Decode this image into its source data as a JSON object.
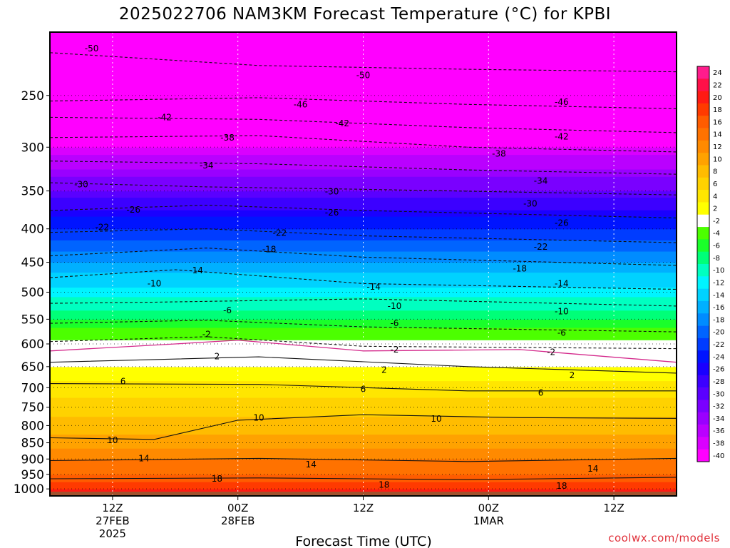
{
  "title": "2025022706 NAM3KM Forecast Temperature (°C) for KPBI",
  "credit": "coolwx.com/models",
  "chart_data": {
    "type": "heatmap",
    "title": "2025022706 NAM3KM Forecast Temperature (°C) for KPBI",
    "xlabel": "Forecast Time (UTC)",
    "ylabel": "",
    "y_axis": {
      "scale": "log-pressure",
      "inverted": true,
      "range_hpa": [
        1025,
        200
      ],
      "tick_labels": [
        "250",
        "300",
        "350",
        "400",
        "450",
        "500",
        "550",
        "600",
        "650",
        "700",
        "750",
        "800",
        "850",
        "900",
        "950",
        "1000"
      ]
    },
    "x_axis": {
      "range_forecast_hours": [
        0,
        60
      ],
      "ticks": [
        {
          "hour": 6,
          "label": "12Z",
          "sublabel": "27FEB",
          "sublabel2": "2025"
        },
        {
          "hour": 18,
          "label": "00Z",
          "sublabel": "28FEB",
          "sublabel2": ""
        },
        {
          "hour": 30,
          "label": "12Z",
          "sublabel": "",
          "sublabel2": ""
        },
        {
          "hour": 42,
          "label": "00Z",
          "sublabel": "1MAR",
          "sublabel2": ""
        },
        {
          "hour": 54,
          "label": "12Z",
          "sublabel": "",
          "sublabel2": ""
        }
      ]
    },
    "grid": true,
    "legend": "colorbar-right",
    "colorbar": {
      "levels": [
        24,
        22,
        20,
        18,
        16,
        14,
        12,
        10,
        8,
        6,
        4,
        2,
        -2,
        -4,
        -6,
        -8,
        -10,
        -12,
        -14,
        -16,
        -18,
        -20,
        -22,
        -24,
        -26,
        -28,
        -30,
        -32,
        -34,
        -36,
        -38,
        -40
      ],
      "colors": [
        "#ff1c8c",
        "#ff1048",
        "#ff1a14",
        "#ff3a00",
        "#ff5c00",
        "#ff7200",
        "#ff8a00",
        "#ffa200",
        "#ffbc00",
        "#ffd200",
        "#ffe600",
        "#ffff00",
        "#ffffff",
        "#4cff00",
        "#1aff2a",
        "#00ff78",
        "#00ffc0",
        "#00f4ff",
        "#00d2ff",
        "#00b0ff",
        "#008cff",
        "#0064ff",
        "#003cff",
        "#0014ff",
        "#1a00ff",
        "#3c00ff",
        "#5a00ff",
        "#7a00ff",
        "#9a00ff",
        "#ba00ff",
        "#da00ff",
        "#ff00ff"
      ]
    },
    "temperature_profile": [
      {
        "hpa": 1010,
        "temp_c": 22
      },
      {
        "hpa": 1000,
        "temp_c": 20
      },
      {
        "hpa": 975,
        "temp_c": 18
      },
      {
        "hpa": 950,
        "temp_c": 16
      },
      {
        "hpa": 925,
        "temp_c": 15
      },
      {
        "hpa": 900,
        "temp_c": 14
      },
      {
        "hpa": 850,
        "temp_c": 11
      },
      {
        "hpa": 800,
        "temp_c": 9
      },
      {
        "hpa": 750,
        "temp_c": 7
      },
      {
        "hpa": 700,
        "temp_c": 5
      },
      {
        "hpa": 650,
        "temp_c": 2
      },
      {
        "hpa": 600,
        "temp_c": -1
      },
      {
        "hpa": 550,
        "temp_c": -6
      },
      {
        "hpa": 500,
        "temp_c": -11
      },
      {
        "hpa": 450,
        "temp_c": -16
      },
      {
        "hpa": 400,
        "temp_c": -22
      },
      {
        "hpa": 350,
        "temp_c": -30
      },
      {
        "hpa": 300,
        "temp_c": -38
      },
      {
        "hpa": 250,
        "temp_c": -46
      },
      {
        "hpa": 200,
        "temp_c": -54
      }
    ],
    "contours": [
      {
        "value": 18,
        "style": "solid",
        "points": [
          [
            0,
            965
          ],
          [
            20,
            962
          ],
          [
            40,
            968
          ],
          [
            60,
            960
          ]
        ]
      },
      {
        "value": 14,
        "style": "solid",
        "points": [
          [
            0,
            905
          ],
          [
            20,
            898
          ],
          [
            40,
            908
          ],
          [
            60,
            898
          ]
        ]
      },
      {
        "value": 10,
        "style": "solid",
        "points": [
          [
            0,
            835
          ],
          [
            10,
            840
          ],
          [
            18,
            785
          ],
          [
            30,
            770
          ],
          [
            45,
            778
          ],
          [
            60,
            780
          ]
        ]
      },
      {
        "value": 6,
        "style": "solid",
        "points": [
          [
            0,
            690
          ],
          [
            20,
            692
          ],
          [
            40,
            708
          ],
          [
            60,
            708
          ]
        ]
      },
      {
        "value": 2,
        "style": "solid",
        "points": [
          [
            0,
            640
          ],
          [
            20,
            628
          ],
          [
            40,
            650
          ],
          [
            60,
            665
          ]
        ]
      },
      {
        "value": 2,
        "style": "dashed",
        "points": [
          [
            0,
            595
          ],
          [
            15,
            585
          ],
          [
            30,
            605
          ],
          [
            60,
            610
          ]
        ]
      },
      {
        "value": 6,
        "style": "dashed",
        "points": [
          [
            0,
            558
          ],
          [
            15,
            552
          ],
          [
            30,
            565
          ],
          [
            60,
            575
          ]
        ]
      },
      {
        "value": 10,
        "style": "dashed",
        "points": [
          [
            0,
            520
          ],
          [
            10,
            518
          ],
          [
            30,
            512
          ],
          [
            60,
            525
          ]
        ]
      },
      {
        "value": 14,
        "style": "dashed",
        "points": [
          [
            0,
            475
          ],
          [
            12,
            462
          ],
          [
            30,
            485
          ],
          [
            60,
            495
          ]
        ]
      },
      {
        "value": 18,
        "style": "dashed",
        "points": [
          [
            0,
            440
          ],
          [
            15,
            428
          ],
          [
            30,
            442
          ],
          [
            60,
            455
          ]
        ]
      },
      {
        "value": 22,
        "style": "dashed",
        "points": [
          [
            0,
            405
          ],
          [
            15,
            400
          ],
          [
            30,
            410
          ],
          [
            60,
            420
          ]
        ]
      },
      {
        "value": 26,
        "style": "dashed",
        "points": [
          [
            0,
            375
          ],
          [
            15,
            368
          ],
          [
            30,
            375
          ],
          [
            60,
            385
          ]
        ]
      },
      {
        "value": 30,
        "style": "dashed",
        "points": [
          [
            0,
            340
          ],
          [
            15,
            345
          ],
          [
            30,
            348
          ],
          [
            60,
            355
          ]
        ]
      },
      {
        "value": 34,
        "style": "dashed",
        "points": [
          [
            0,
            315
          ],
          [
            20,
            318
          ],
          [
            40,
            325
          ],
          [
            60,
            330
          ]
        ]
      },
      {
        "value": 38,
        "style": "dashed",
        "points": [
          [
            0,
            290
          ],
          [
            20,
            288
          ],
          [
            40,
            300
          ],
          [
            60,
            305
          ]
        ]
      },
      {
        "value": 42,
        "style": "dashed",
        "points": [
          [
            0,
            270
          ],
          [
            20,
            272
          ],
          [
            40,
            280
          ],
          [
            60,
            285
          ]
        ]
      },
      {
        "value": 46,
        "style": "dashed",
        "points": [
          [
            0,
            255
          ],
          [
            20,
            252
          ],
          [
            40,
            258
          ],
          [
            60,
            262
          ]
        ]
      },
      {
        "value": 50,
        "style": "dashed",
        "points": [
          [
            0,
            215
          ],
          [
            20,
            225
          ],
          [
            40,
            228
          ],
          [
            60,
            230
          ]
        ]
      }
    ],
    "contour_labels": [
      {
        "text": "-50",
        "hour": 4,
        "hpa": 212
      },
      {
        "text": "-50",
        "hour": 30,
        "hpa": 233
      },
      {
        "text": "-46",
        "hour": 24,
        "hpa": 258
      },
      {
        "text": "-46",
        "hour": 49,
        "hpa": 256
      },
      {
        "text": "-42",
        "hour": 11,
        "hpa": 270
      },
      {
        "text": "-42",
        "hour": 28,
        "hpa": 276
      },
      {
        "text": "-42",
        "hour": 49,
        "hpa": 289
      },
      {
        "text": "-38",
        "hour": 17,
        "hpa": 290
      },
      {
        "text": "-38",
        "hour": 43,
        "hpa": 307
      },
      {
        "text": "-34",
        "hour": 15,
        "hpa": 320
      },
      {
        "text": "-34",
        "hour": 47,
        "hpa": 338
      },
      {
        "text": "-30",
        "hour": 3,
        "hpa": 342
      },
      {
        "text": "-30",
        "hour": 27,
        "hpa": 351
      },
      {
        "text": "-30",
        "hour": 46,
        "hpa": 366
      },
      {
        "text": "-26",
        "hour": 8,
        "hpa": 374
      },
      {
        "text": "-26",
        "hour": 27,
        "hpa": 378
      },
      {
        "text": "-26",
        "hour": 49,
        "hpa": 392
      },
      {
        "text": "-22",
        "hour": 5,
        "hpa": 398
      },
      {
        "text": "-22",
        "hour": 22,
        "hpa": 406
      },
      {
        "text": "-22",
        "hour": 47,
        "hpa": 426
      },
      {
        "text": "-18",
        "hour": 21,
        "hpa": 430
      },
      {
        "text": "-18",
        "hour": 45,
        "hpa": 460
      },
      {
        "text": "-14",
        "hour": 14,
        "hpa": 463
      },
      {
        "text": "-14",
        "hour": 31,
        "hpa": 491
      },
      {
        "text": "-14",
        "hour": 49,
        "hpa": 485
      },
      {
        "text": "-10",
        "hour": 10,
        "hpa": 485
      },
      {
        "text": "-10",
        "hour": 33,
        "hpa": 525
      },
      {
        "text": "-10",
        "hour": 49,
        "hpa": 535
      },
      {
        "text": "-6",
        "hour": 17,
        "hpa": 533
      },
      {
        "text": "-6",
        "hour": 33,
        "hpa": 558
      },
      {
        "text": "-6",
        "hour": 49,
        "hpa": 577
      },
      {
        "text": "-2",
        "hour": 15,
        "hpa": 580
      },
      {
        "text": "-2",
        "hour": 33,
        "hpa": 612
      },
      {
        "text": "-2",
        "hour": 48,
        "hpa": 618
      },
      {
        "text": "2",
        "hour": 16,
        "hpa": 627
      },
      {
        "text": "2",
        "hour": 32,
        "hpa": 658
      },
      {
        "text": "2",
        "hour": 50,
        "hpa": 670
      },
      {
        "text": "6",
        "hour": 7,
        "hpa": 685
      },
      {
        "text": "6",
        "hour": 30,
        "hpa": 704
      },
      {
        "text": "6",
        "hour": 47,
        "hpa": 713
      },
      {
        "text": "10",
        "hour": 20,
        "hpa": 778
      },
      {
        "text": "10",
        "hour": 37,
        "hpa": 781
      },
      {
        "text": "10",
        "hour": 6,
        "hpa": 842
      },
      {
        "text": "14",
        "hour": 9,
        "hpa": 898
      },
      {
        "text": "14",
        "hour": 25,
        "hpa": 918
      },
      {
        "text": "14",
        "hour": 52,
        "hpa": 932
      },
      {
        "text": "18",
        "hour": 16,
        "hpa": 965
      },
      {
        "text": "18",
        "hour": 32,
        "hpa": 986
      },
      {
        "text": "18",
        "hour": 49,
        "hpa": 990
      }
    ]
  }
}
